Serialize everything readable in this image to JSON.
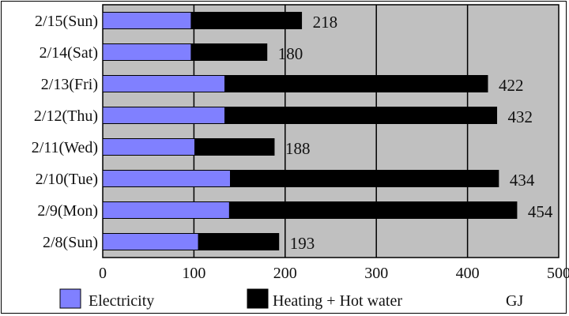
{
  "chart_data": {
    "type": "bar",
    "orientation": "horizontal",
    "stacked": true,
    "categories": [
      "2/15(Sun)",
      "2/14(Sat)",
      "2/13(Fri)",
      "2/12(Thu)",
      "2/11(Wed)",
      "2/10(Tue)",
      "2/9(Mon)",
      "2/8(Sun)"
    ],
    "series": [
      {
        "name": "Electricity",
        "values": [
          97,
          97,
          134,
          134,
          101,
          140,
          139,
          105
        ],
        "color": "#8080ff"
      },
      {
        "name": "Heating + Hot water",
        "values": [
          121,
          83,
          288,
          298,
          87,
          294,
          315,
          88
        ],
        "color": "#000000"
      }
    ],
    "totals": [
      "218",
      "180",
      "422",
      "432",
      "188",
      "434",
      "454",
      "193"
    ],
    "title": "",
    "xlabel": "",
    "ylabel": "",
    "unit": "GJ",
    "xlim": [
      0,
      500
    ],
    "xticks": [
      "0",
      "100",
      "200",
      "300",
      "400",
      "500"
    ],
    "grid": "vertical",
    "legend_position": "bottom",
    "plot_background": "#c0c0c0"
  }
}
